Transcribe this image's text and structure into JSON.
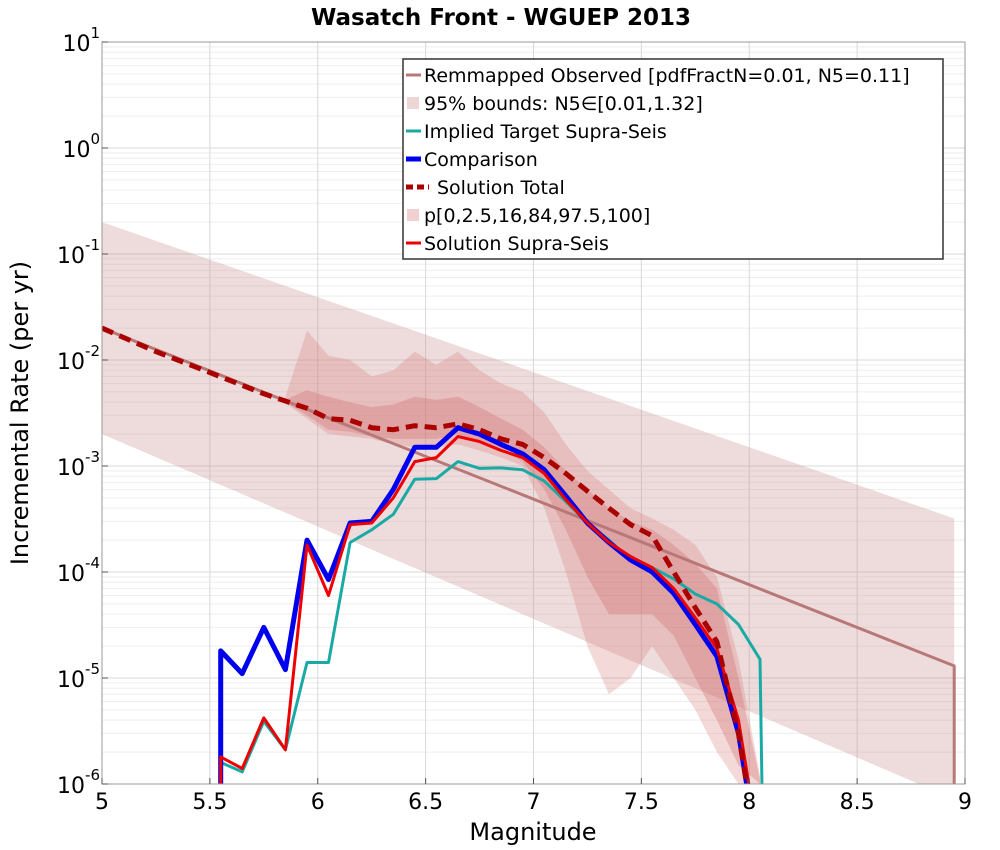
{
  "chart_data": {
    "type": "line",
    "title": "Wasatch Front - WGUEP 2013",
    "xlabel": "Magnitude",
    "ylabel": "Incremental Rate (per yr)",
    "xlim": [
      5,
      9
    ],
    "ylim_log10": [
      -6,
      1
    ],
    "yscale": "log",
    "x_ticks": [
      "5",
      "5.5",
      "6",
      "6.5",
      "7",
      "7.5",
      "8",
      "8.5",
      "9"
    ],
    "y_ticks": [
      {
        "base": "10",
        "exp": "-6"
      },
      {
        "base": "10",
        "exp": "-5"
      },
      {
        "base": "10",
        "exp": "-4"
      },
      {
        "base": "10",
        "exp": "-3"
      },
      {
        "base": "10",
        "exp": "-2"
      },
      {
        "base": "10",
        "exp": "-1"
      },
      {
        "base": "10",
        "exp": "0"
      },
      {
        "base": "10",
        "exp": "1"
      }
    ],
    "grid": true,
    "legend_position": "top-right",
    "legend": [
      {
        "label": "Remmapped Observed [pdfFractN=0.01, N5=0.11]",
        "style": "line",
        "color": "#b87878"
      },
      {
        "label": "95% bounds: N5∈[0.01,1.32]",
        "style": "patch",
        "color": "#ecd6d6"
      },
      {
        "label": "Implied Target Supra-Seis",
        "style": "line",
        "color": "#1aaaa6"
      },
      {
        "label": "Comparison",
        "style": "thick",
        "color": "#0000ee"
      },
      {
        "label": "Solution Total",
        "style": "dashed",
        "color": "#aa0000"
      },
      {
        "label": "p[0,2.5,16,84,97.5,100]",
        "style": "patch",
        "color": "#f0d0d0"
      },
      {
        "label": "Solution Supra-Seis",
        "style": "line",
        "color": "#ee0000"
      }
    ],
    "bounds_95": {
      "x": [
        5.0,
        8.95
      ],
      "lower": [
        0.002,
        7.2e-07
      ],
      "upper": [
        0.2,
        0.00032
      ]
    },
    "percentile_bands": {
      "x": [
        5.85,
        5.95,
        6.05,
        6.15,
        6.25,
        6.35,
        6.45,
        6.55,
        6.65,
        6.75,
        6.85,
        6.95,
        7.05,
        7.15,
        7.25,
        7.35,
        7.45,
        7.55,
        7.65,
        7.75,
        7.85,
        7.95,
        8.05
      ],
      "outer_lower": [
        0.0039,
        0.0028,
        0.002,
        0.0019,
        0.0018,
        0.0016,
        0.0015,
        0.0015,
        0.0016,
        0.0014,
        0.0012,
        0.001,
        0.0004,
        0.0001,
        2e-05,
        7e-06,
        1e-05,
        2e-05,
        1e-05,
        5e-06,
        2e-06,
        1e-06,
        1e-06
      ],
      "outer_upper": [
        0.0045,
        0.019,
        0.011,
        0.01,
        0.007,
        0.008,
        0.012,
        0.009,
        0.012,
        0.008,
        0.006,
        0.005,
        0.0032,
        0.0016,
        0.0009,
        0.0006,
        0.0004,
        0.00032,
        0.00025,
        0.00018,
        9e-05,
        1.5e-05,
        1.2e-06
      ],
      "inner_lower": [
        0.004,
        0.003,
        0.0022,
        0.0021,
        0.0019,
        0.0018,
        0.0018,
        0.0018,
        0.002,
        0.0017,
        0.0014,
        0.0011,
        0.0006,
        0.00025,
        9e-05,
        4e-05,
        4e-05,
        4e-05,
        2.5e-05,
        1e-05,
        4e-06,
        1.5e-06,
        1e-06
      ],
      "inner_upper": [
        0.0042,
        0.0052,
        0.0045,
        0.004,
        0.0036,
        0.0038,
        0.0045,
        0.0042,
        0.0045,
        0.0036,
        0.0028,
        0.0022,
        0.0015,
        0.0009,
        0.0006,
        0.0004,
        0.0003,
        0.00025,
        0.00018,
        0.00012,
        7e-05,
        1e-05,
        1.1e-06
      ]
    },
    "series": [
      {
        "name": "Remmapped Observed [pdfFractN=0.01, N5=0.11]",
        "color": "#b87878",
        "width": 3,
        "x": [
          5.0,
          8.95,
          8.95
        ],
        "y": [
          0.02,
          1.3e-05,
          7e-07
        ]
      },
      {
        "name": "Implied Target Supra-Seis",
        "color": "#1aaaa6",
        "width": 3,
        "x": [
          5.55,
          5.55,
          5.65,
          5.75,
          5.85,
          5.95,
          6.05,
          6.15,
          6.25,
          6.35,
          6.45,
          6.55,
          6.65,
          6.75,
          6.85,
          6.95,
          7.05,
          7.15,
          7.25,
          7.35,
          7.45,
          7.55,
          7.65,
          7.75,
          7.85,
          7.95,
          8.05,
          8.06
        ],
        "y": [
          7e-07,
          1.6e-06,
          1.3e-06,
          3.9e-06,
          2.1e-06,
          1.4e-05,
          1.4e-05,
          0.00019,
          0.00025,
          0.00035,
          0.00075,
          0.00076,
          0.0011,
          0.00095,
          0.00096,
          0.00092,
          0.00072,
          0.00046,
          0.00029,
          0.0002,
          0.00013,
          0.00011,
          8.6e-05,
          6.2e-05,
          5e-05,
          3.2e-05,
          1.5e-05,
          7e-07
        ]
      },
      {
        "name": "Comparison",
        "color": "#0000ee",
        "width": 5,
        "x": [
          5.55,
          5.55,
          5.65,
          5.75,
          5.85,
          5.95,
          6.05,
          6.15,
          6.25,
          6.35,
          6.45,
          6.55,
          6.65,
          6.75,
          6.85,
          6.95,
          7.05,
          7.15,
          7.25,
          7.35,
          7.45,
          7.55,
          7.65,
          7.75,
          7.85,
          7.95,
          8.0
        ],
        "y": [
          7e-07,
          1.8e-05,
          1.1e-05,
          3e-05,
          1.2e-05,
          0.0002,
          8.5e-05,
          0.00029,
          0.0003,
          0.0006,
          0.0015,
          0.0015,
          0.0023,
          0.002,
          0.0016,
          0.0013,
          0.00092,
          0.00052,
          0.00029,
          0.00019,
          0.00013,
          0.0001,
          6.3e-05,
          3.2e-05,
          1.6e-05,
          3e-06,
          7e-07
        ]
      },
      {
        "name": "Solution Total",
        "color": "#aa0000",
        "width": 5,
        "dashed": true,
        "x": [
          5.0,
          5.25,
          5.5,
          5.75,
          5.95,
          6.05,
          6.15,
          6.25,
          6.35,
          6.45,
          6.55,
          6.65,
          6.75,
          6.85,
          6.95,
          7.05,
          7.15,
          7.25,
          7.35,
          7.45,
          7.55,
          7.65,
          7.75,
          7.85,
          7.95,
          8.0
        ],
        "y": [
          0.02,
          0.012,
          0.0076,
          0.0048,
          0.0035,
          0.0028,
          0.0027,
          0.0023,
          0.0022,
          0.0024,
          0.0023,
          0.0025,
          0.0022,
          0.0018,
          0.0016,
          0.0012,
          0.00085,
          0.00058,
          0.0004,
          0.00028,
          0.00022,
          0.0001,
          4.6e-05,
          2.2e-05,
          3e-06,
          7e-07
        ]
      },
      {
        "name": "Solution Supra-Seis",
        "color": "#ee0000",
        "width": 3,
        "x": [
          5.55,
          5.55,
          5.65,
          5.75,
          5.85,
          5.95,
          6.05,
          6.15,
          6.25,
          6.35,
          6.45,
          6.55,
          6.65,
          6.75,
          6.85,
          6.95,
          7.05,
          7.15,
          7.25,
          7.35,
          7.45,
          7.55,
          7.65,
          7.75,
          7.85,
          7.95,
          8.01
        ],
        "y": [
          7e-07,
          1.8e-06,
          1.4e-06,
          4.2e-06,
          2.1e-06,
          0.00018,
          6e-05,
          0.00028,
          0.00029,
          0.0005,
          0.0011,
          0.0012,
          0.0019,
          0.0017,
          0.0014,
          0.0012,
          0.00085,
          0.00048,
          0.00029,
          0.00019,
          0.00014,
          0.00011,
          7e-05,
          3.7e-05,
          1.9e-05,
          4e-06,
          7e-07
        ]
      }
    ]
  }
}
